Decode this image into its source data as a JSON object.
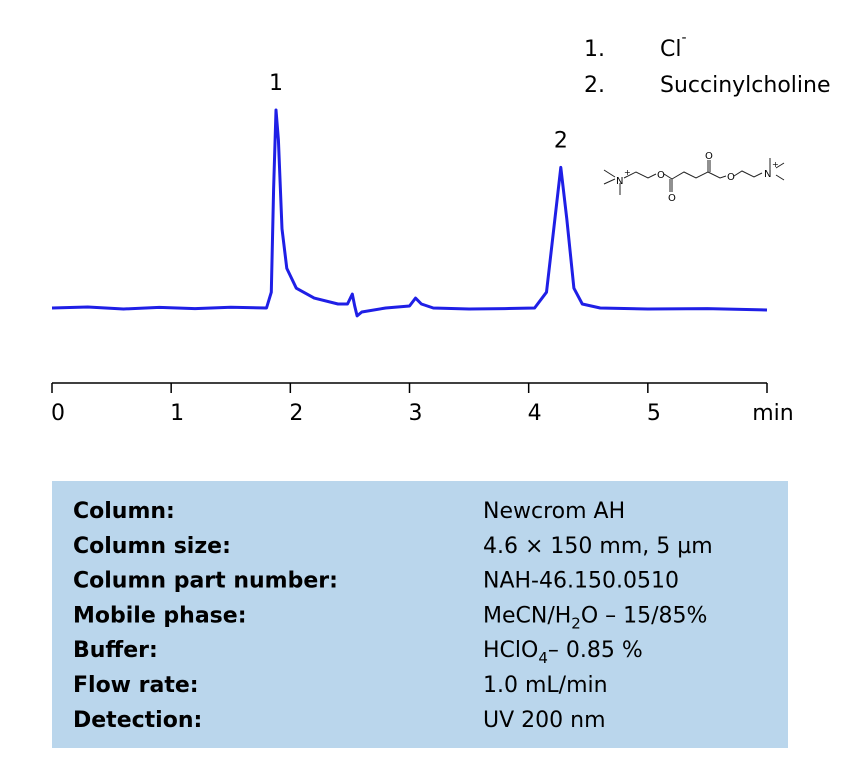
{
  "chart_data": {
    "type": "line",
    "x": [
      0,
      0.3,
      0.6,
      0.9,
      1.2,
      1.5,
      1.8,
      1.84,
      1.86,
      1.88,
      1.9,
      1.93,
      1.97,
      2.05,
      2.2,
      2.4,
      2.48,
      2.52,
      2.54,
      2.56,
      2.6,
      2.8,
      3.0,
      3.05,
      3.1,
      3.2,
      3.5,
      3.8,
      4.05,
      4.15,
      4.22,
      4.27,
      4.32,
      4.38,
      4.45,
      4.6,
      5.0,
      5.5,
      6.0
    ],
    "values": [
      0,
      0.5,
      -0.5,
      0.3,
      -0.3,
      0.4,
      0,
      8,
      60,
      100,
      85,
      40,
      20,
      10,
      5,
      2,
      2,
      7,
      1,
      -4,
      -2,
      0,
      1,
      5,
      2,
      0,
      -0.5,
      -0.3,
      0,
      8,
      45,
      71,
      45,
      10,
      2,
      0,
      -0.5,
      -0.3,
      -1
    ],
    "color": "#1f1fe6",
    "xlim": [
      0,
      6
    ],
    "ylim": [
      0,
      100
    ],
    "xticks": [
      0,
      1,
      2,
      3,
      4,
      5,
      {
        "value": 6,
        "label": "min"
      }
    ],
    "annotations": [
      {
        "text": "1",
        "x": 1.88
      },
      {
        "text": "2",
        "x": 4.27
      }
    ]
  },
  "compounds": [
    {
      "number": "1.",
      "name": "Cl",
      "charge": "-"
    },
    {
      "number": "2.",
      "name": "Succinylcholine"
    }
  ],
  "structure": {
    "atoms": [
      "N",
      "+",
      "O",
      "O",
      "O",
      "O",
      "N",
      "+"
    ]
  },
  "info_table": {
    "rows": [
      {
        "label": "Column:",
        "value": [
          "Newcrom AH"
        ]
      },
      {
        "label": "Column size:",
        "value": [
          "4.6 × 150 mm, 5 µm"
        ]
      },
      {
        "label": "Column part number:",
        "value": [
          "NAH-46.150.0510"
        ]
      },
      {
        "label": "Mobile phase:",
        "value": [
          "MeCN/H",
          "2",
          "O – 15/85%"
        ]
      },
      {
        "label": "Buffer:",
        "value": [
          "HClO",
          "4",
          "– 0.85 %"
        ]
      },
      {
        "label": "Flow rate:",
        "value": [
          "1.0 mL/min"
        ]
      },
      {
        "label": "Detection:",
        "value": [
          "UV 200 nm"
        ]
      }
    ]
  }
}
